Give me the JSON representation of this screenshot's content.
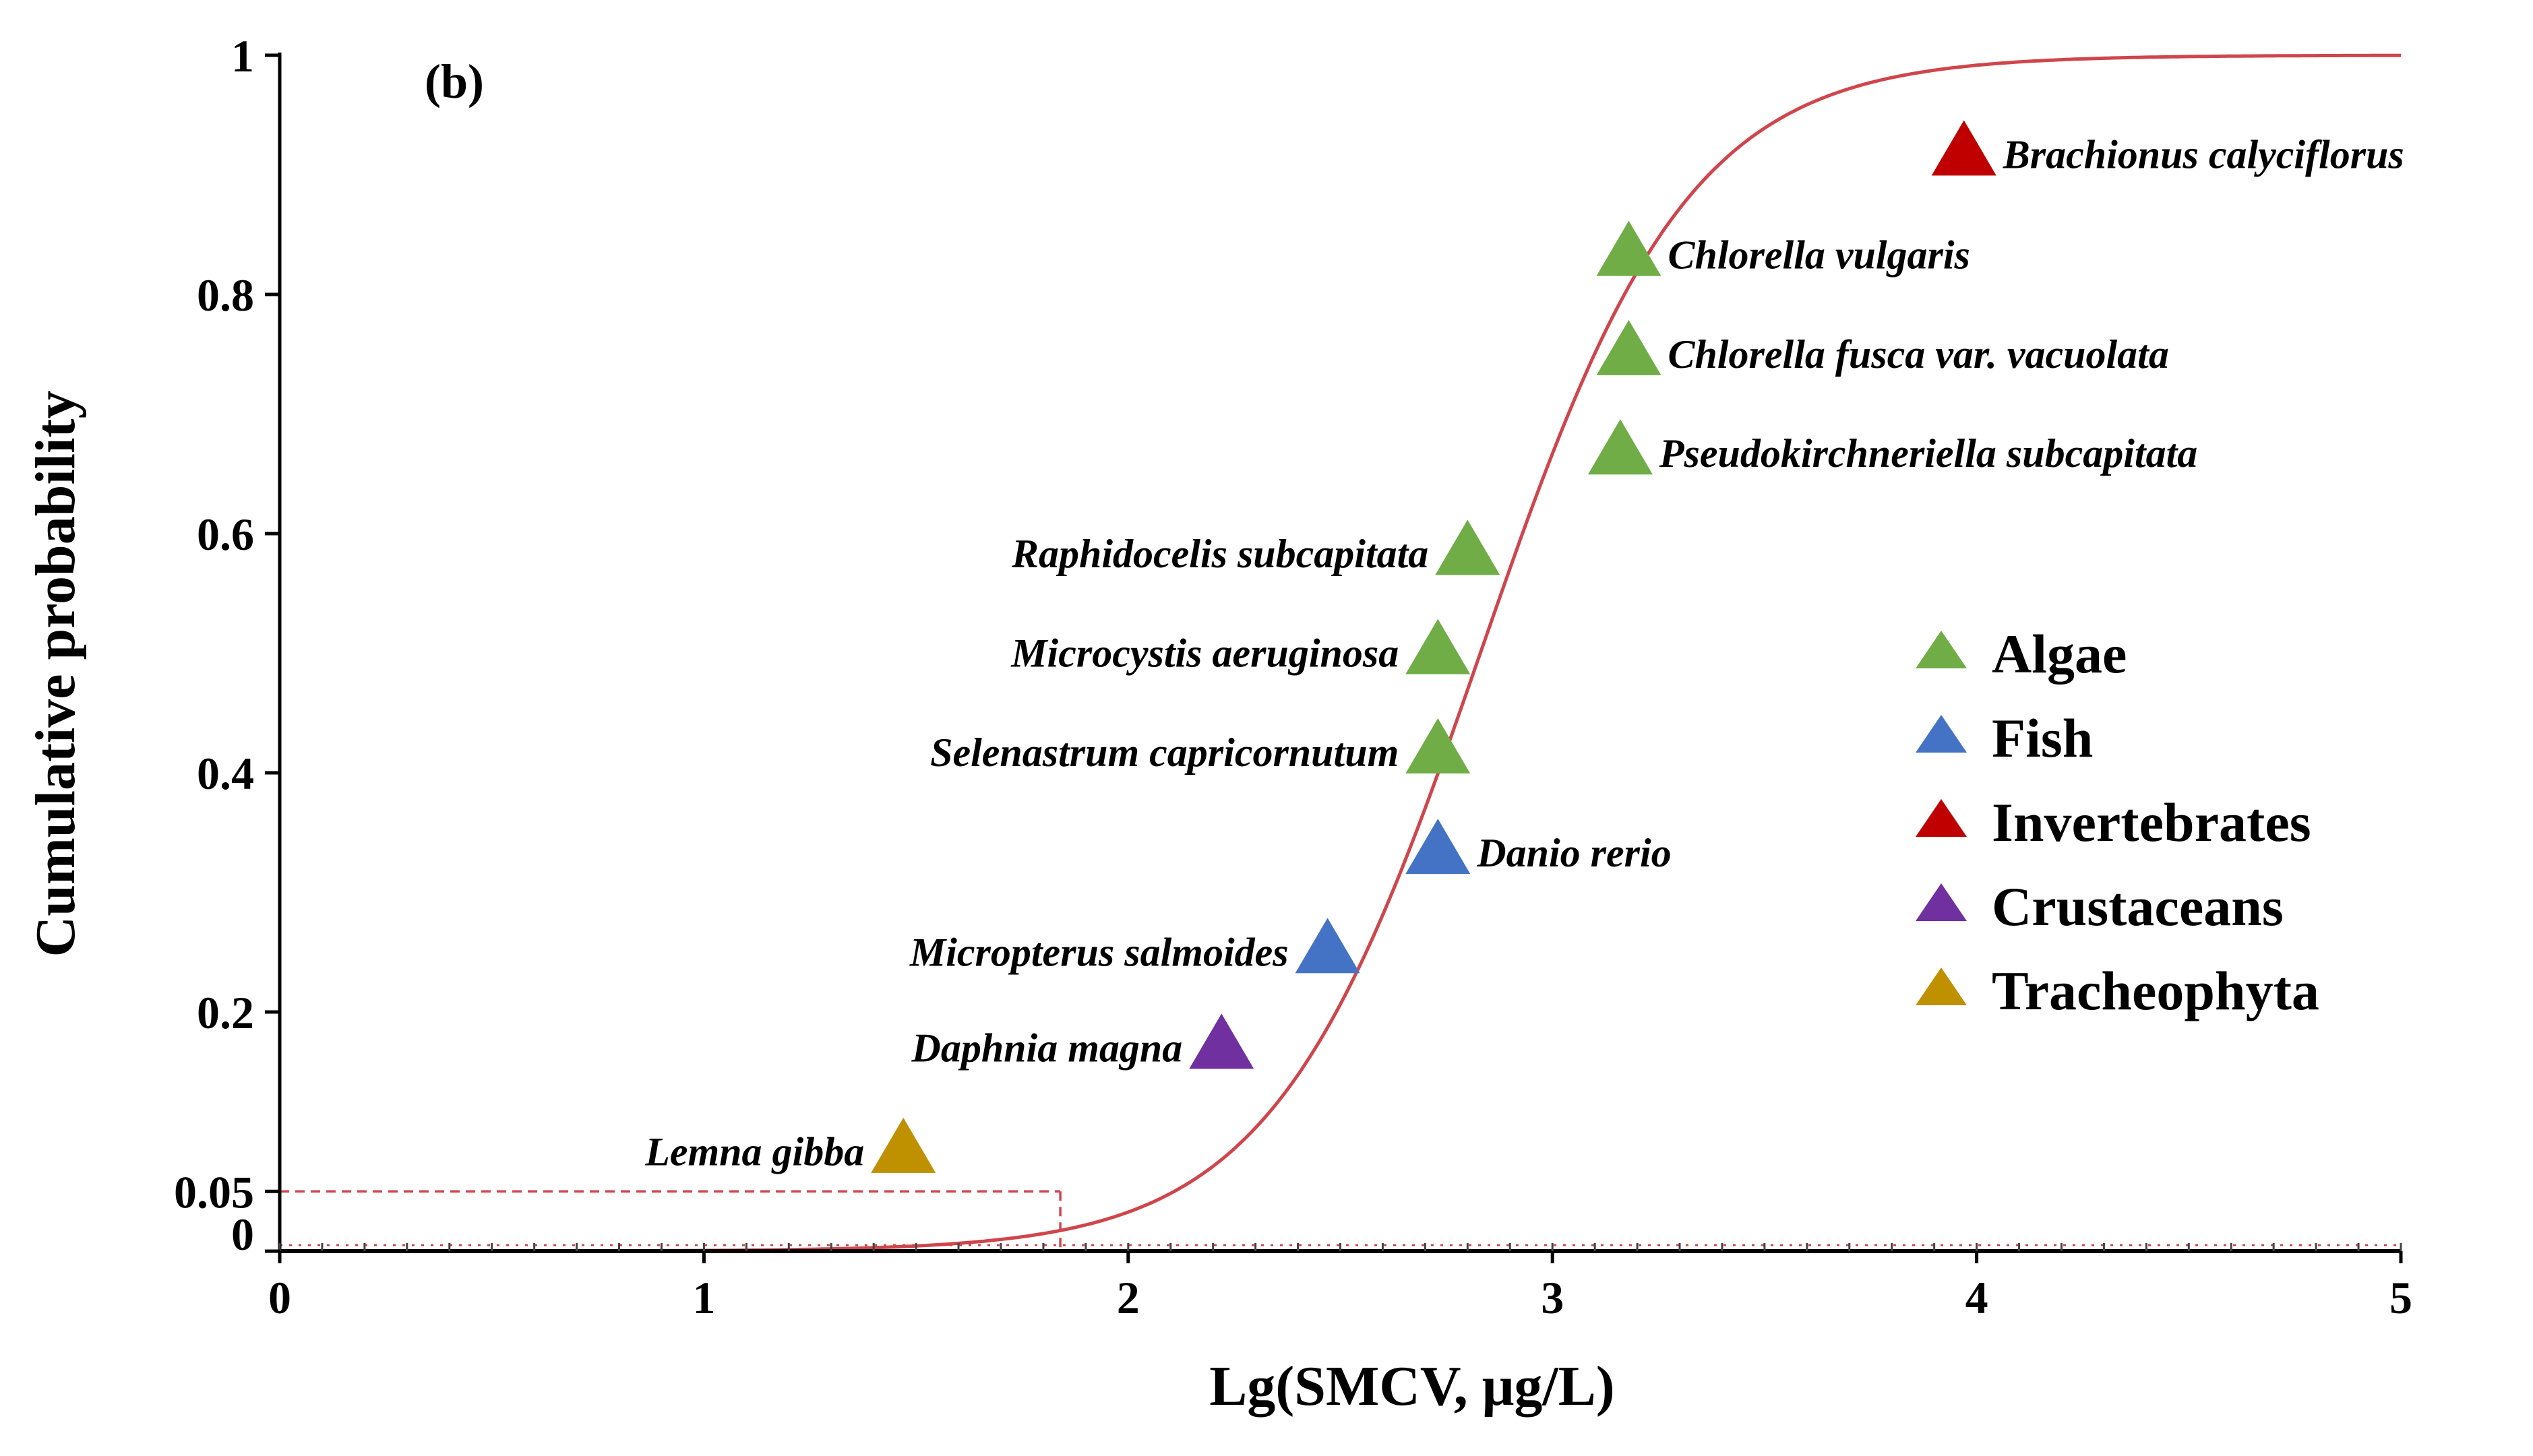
{
  "chart_data": {
    "type": "scatter",
    "panel_label": "(b)",
    "xlabel": "Lg(SMCV, μg/L)",
    "ylabel": "Cumulative probability",
    "xlim": [
      0,
      5
    ],
    "ylim": [
      0,
      1
    ],
    "x_ticks": [
      {
        "value": 0,
        "label": "0"
      },
      {
        "value": 1,
        "label": "1"
      },
      {
        "value": 2,
        "label": "2"
      },
      {
        "value": 3,
        "label": "3"
      },
      {
        "value": 4,
        "label": "4"
      },
      {
        "value": 5,
        "label": "5"
      }
    ],
    "y_ticks": [
      {
        "value": 0,
        "label": "0"
      },
      {
        "value": 0.05,
        "label": "0.05"
      },
      {
        "value": 0.2,
        "label": "0.2"
      },
      {
        "value": 0.4,
        "label": "0.4"
      },
      {
        "value": 0.6,
        "label": "0.6"
      },
      {
        "value": 0.8,
        "label": "0.8"
      },
      {
        "value": 1,
        "label": "1"
      }
    ],
    "fitted_curve": {
      "type": "log-logistic",
      "mu": 2.83,
      "s": 0.245,
      "color": "#d0454c"
    },
    "hc5": {
      "x": 1.84,
      "y": 0.05,
      "color": "#d0454c"
    },
    "categories": [
      {
        "name": "Algae",
        "color": "#70ad47"
      },
      {
        "name": "Fish",
        "color": "#4472c4"
      },
      {
        "name": "Invertebrates",
        "color": "#c00000"
      },
      {
        "name": "Crustaceans",
        "color": "#7030a0"
      },
      {
        "name": "Tracheophyta",
        "color": "#bf9000"
      }
    ],
    "points": [
      {
        "species": "Lemna gibba",
        "category": "Tracheophyta",
        "x": 1.47,
        "y": 0.083,
        "label_side": "left"
      },
      {
        "species": "Daphnia magna",
        "category": "Crustaceans",
        "x": 2.22,
        "y": 0.17,
        "label_side": "left"
      },
      {
        "species": "Micropterus salmoides",
        "category": "Fish",
        "x": 2.47,
        "y": 0.25,
        "label_side": "left"
      },
      {
        "species": "Danio rerio",
        "category": "Fish",
        "x": 2.73,
        "y": 0.333,
        "label_side": "right"
      },
      {
        "species": "Selenastrum capricornutum",
        "category": "Algae",
        "x": 2.73,
        "y": 0.417,
        "label_side": "left"
      },
      {
        "species": "Microcystis aeruginosa",
        "category": "Algae",
        "x": 2.73,
        "y": 0.5,
        "label_side": "left"
      },
      {
        "species": "Raphidocelis subcapitata",
        "category": "Algae",
        "x": 2.8,
        "y": 0.583,
        "label_side": "left"
      },
      {
        "species": "Pseudokirchneriella subcapitata",
        "category": "Algae",
        "x": 3.16,
        "y": 0.667,
        "label_side": "right"
      },
      {
        "species": "Chlorella fusca var. vacuolata",
        "category": "Algae",
        "x": 3.18,
        "y": 0.75,
        "label_side": "right"
      },
      {
        "species": "Chlorella vulgaris",
        "category": "Algae",
        "x": 3.18,
        "y": 0.833,
        "label_side": "right"
      },
      {
        "species": "Brachionus calyciflorus",
        "category": "Invertebrates",
        "x": 3.97,
        "y": 0.917,
        "label_side": "right"
      }
    ]
  }
}
